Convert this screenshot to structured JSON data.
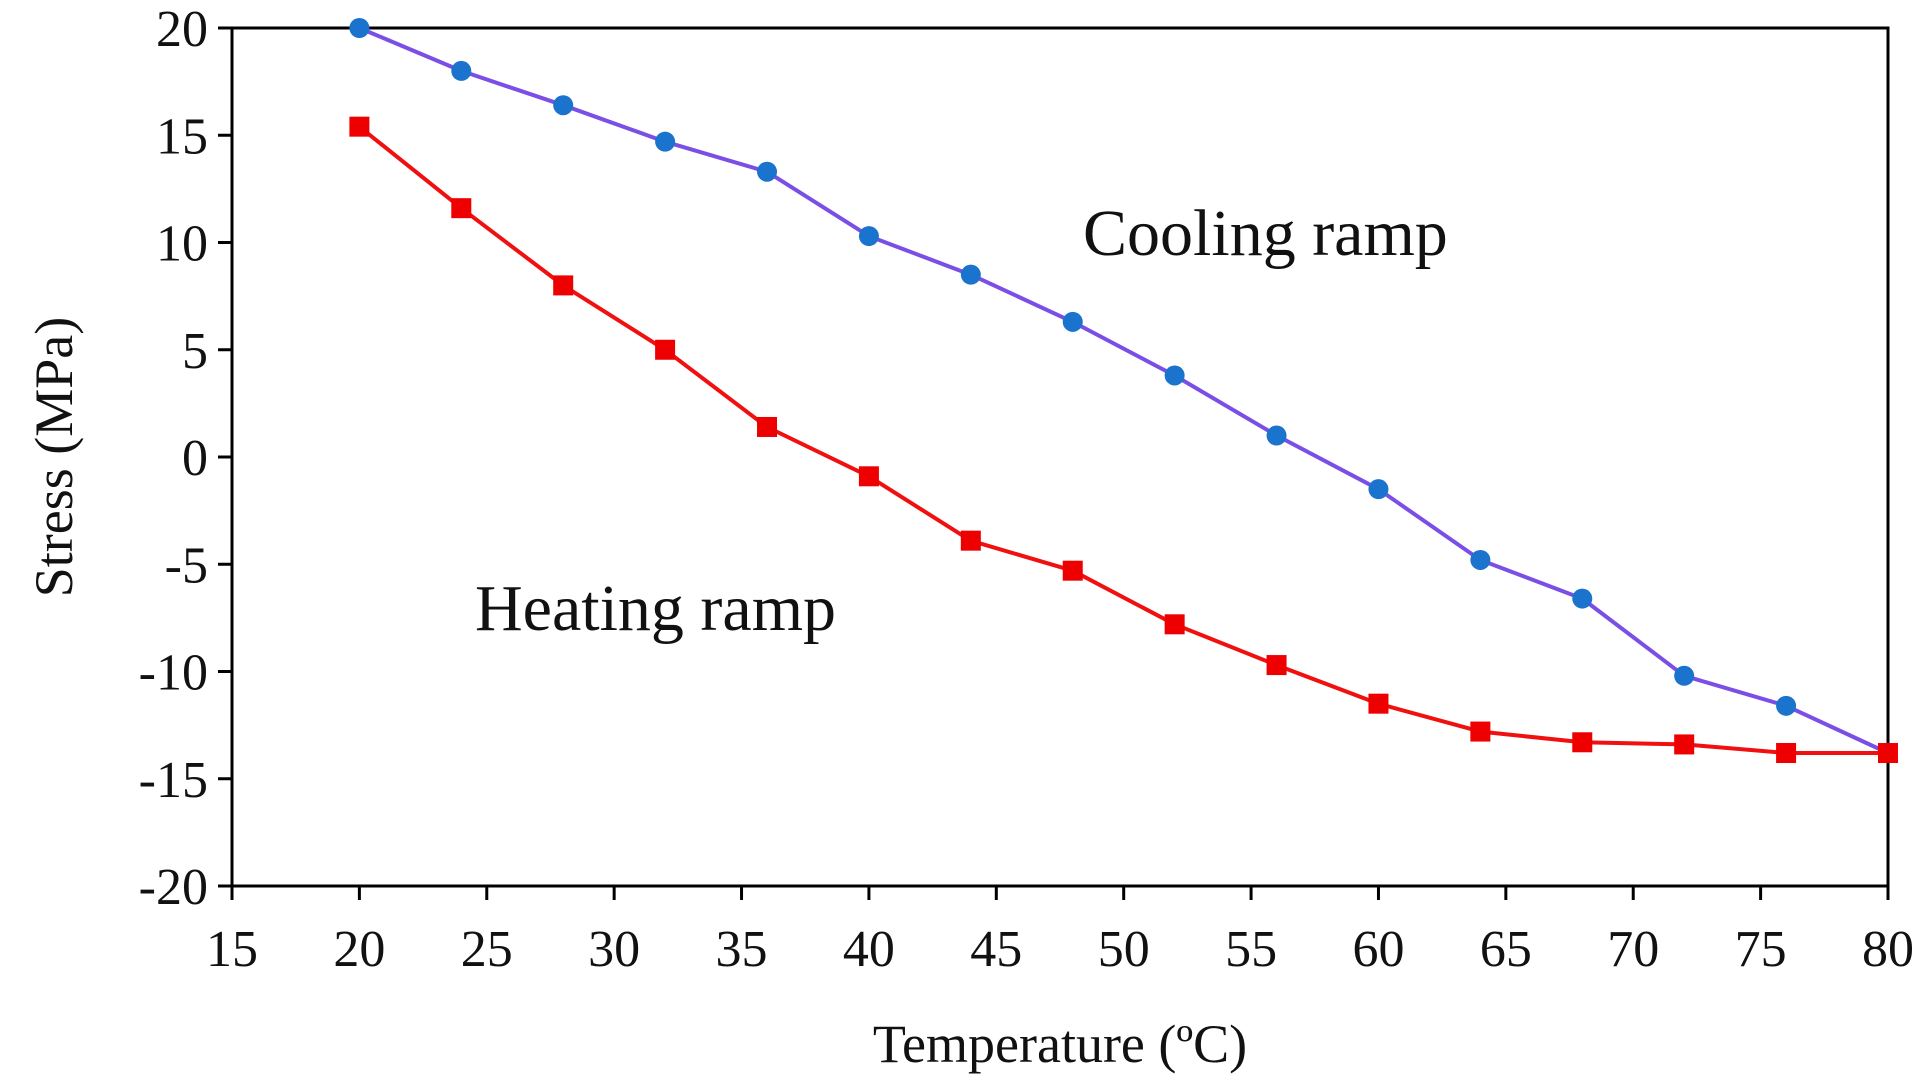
{
  "chart_data": {
    "type": "line",
    "title": "",
    "xlabel": "Temperature (ºC)",
    "ylabel": "Stress (MPa)",
    "xlim": [
      15,
      80
    ],
    "ylim": [
      -20,
      20
    ],
    "xticks": [
      15,
      20,
      25,
      30,
      35,
      40,
      45,
      50,
      55,
      60,
      65,
      70,
      75,
      80
    ],
    "yticks": [
      20,
      15,
      10,
      5,
      0,
      -5,
      -10,
      -15,
      -20
    ],
    "grid": false,
    "series": [
      {
        "name": "Cooling ramp",
        "color": "#7b4fe6",
        "marker": "circle",
        "marker_color": "#1a73cc",
        "x": [
          20,
          24,
          28,
          32,
          36,
          40,
          44,
          48,
          52,
          56,
          60,
          64,
          68,
          72,
          76,
          80
        ],
        "y": [
          20.0,
          18.0,
          16.4,
          14.7,
          13.3,
          10.3,
          8.5,
          6.3,
          3.8,
          1.0,
          -1.5,
          -4.8,
          -6.6,
          -10.2,
          -11.6,
          -13.8
        ]
      },
      {
        "name": "Heating ramp",
        "color": "#f01010",
        "marker": "square",
        "marker_color": "#ee0000",
        "x": [
          20,
          24,
          28,
          32,
          36,
          40,
          44,
          48,
          52,
          56,
          60,
          64,
          68,
          72,
          76,
          80
        ],
        "y": [
          15.4,
          11.6,
          8.0,
          5.0,
          1.4,
          -0.9,
          -3.9,
          -5.3,
          -7.8,
          -9.7,
          -11.5,
          -12.8,
          -13.3,
          -13.4,
          -13.8,
          -13.8
        ]
      }
    ],
    "annotations": [
      {
        "text": "Cooling ramp",
        "series": 0
      },
      {
        "text": "Heating ramp",
        "series": 1
      }
    ]
  }
}
